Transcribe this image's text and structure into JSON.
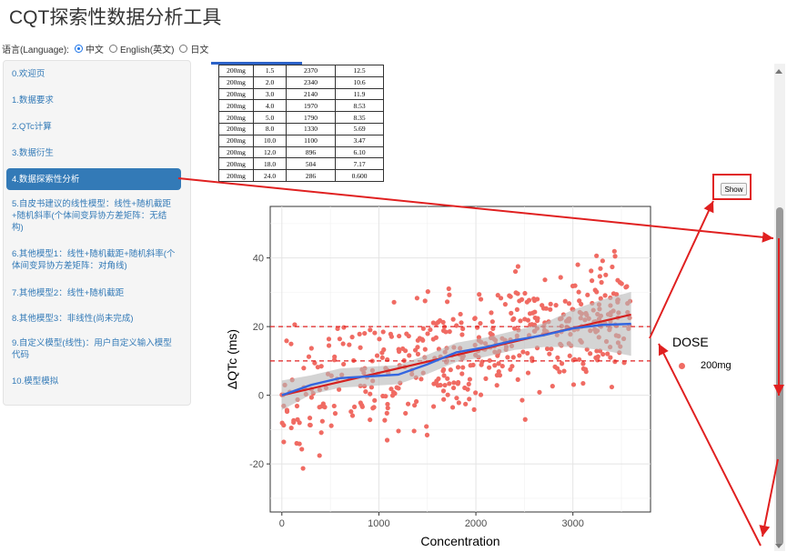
{
  "app": {
    "title": "CQT探索性数据分析工具"
  },
  "language": {
    "label": "语言(Language):",
    "options": [
      {
        "label": "中文",
        "selected": true
      },
      {
        "label": "English(英文)",
        "selected": false
      },
      {
        "label": "日文",
        "selected": false
      }
    ]
  },
  "sidebar": {
    "items": [
      {
        "label": "0.欢迎页",
        "active": false
      },
      {
        "label": "1.数据要求",
        "active": false
      },
      {
        "label": "2.QTc计算",
        "active": false
      },
      {
        "label": "3.数据衍生",
        "active": false
      },
      {
        "label": "4.数据探索性分析",
        "active": true
      },
      {
        "label": "5.自皮书建议的线性模型：线性+随机截距+随机斜率(个体间变异协方差矩阵：无结构)",
        "active": false
      },
      {
        "label": "6.其他模型1：线性+随机截距+随机斜率(个体间变异协方差矩阵：对角线)",
        "active": false
      },
      {
        "label": "7.其他模型2：线性+随机截距",
        "active": false
      },
      {
        "label": "8.其他模型3：非线性(尚未完成)",
        "active": false
      },
      {
        "label": "9.自定义模型(线性)：用户自定义输入模型代码",
        "active": false
      },
      {
        "label": "10.模型模拟",
        "active": false
      }
    ]
  },
  "summary_table": {
    "rows": [
      [
        "200mg",
        "1.5",
        "2370",
        "12.5"
      ],
      [
        "200mg",
        "2.0",
        "2340",
        "10.6"
      ],
      [
        "200mg",
        "3.0",
        "2140",
        "11.9"
      ],
      [
        "200mg",
        "4.0",
        "1970",
        "8.53"
      ],
      [
        "200mg",
        "5.0",
        "1790",
        "8.35"
      ],
      [
        "200mg",
        "8.0",
        "1330",
        "5.69"
      ],
      [
        "200mg",
        "10.0",
        "1100",
        "3.47"
      ],
      [
        "200mg",
        "12.0",
        "896",
        "6.10"
      ],
      [
        "200mg",
        "18.0",
        "504",
        "7.17"
      ],
      [
        "200mg",
        "24.0",
        "286",
        "0.600"
      ]
    ]
  },
  "controls": {
    "show_label": "Show"
  },
  "colors": {
    "accent": "#337ab7",
    "points": "#f06b63",
    "loess": "#3366e0",
    "linear": "#d42020",
    "refline": "#e02020",
    "annotation": "#e02020"
  },
  "chart_data": {
    "type": "scatter",
    "xlabel": "Concentration",
    "ylabel": "ΔQTc (ms)",
    "xlim": [
      -120,
      3800
    ],
    "ylim": [
      -34,
      55
    ],
    "xticks": [
      0,
      1000,
      2000,
      3000
    ],
    "yticks": [
      -20,
      0,
      20,
      40
    ],
    "grid": true,
    "legend": {
      "title": "DOSE",
      "position": "right",
      "entries": [
        "200mg"
      ]
    },
    "reference_lines": [
      10,
      20
    ],
    "linear_fit": {
      "x": [
        0,
        3600
      ],
      "y": [
        0,
        23.5
      ]
    },
    "loess_fit": {
      "x": [
        0,
        300,
        600,
        900,
        1200,
        1500,
        1800,
        2100,
        2400,
        2700,
        3000,
        3300,
        3600
      ],
      "y": [
        0,
        3,
        5,
        5.5,
        6,
        9,
        12.5,
        14,
        16,
        17.5,
        19.5,
        20.5,
        20.8
      ]
    },
    "point_count": 500,
    "point_seed": 7
  }
}
